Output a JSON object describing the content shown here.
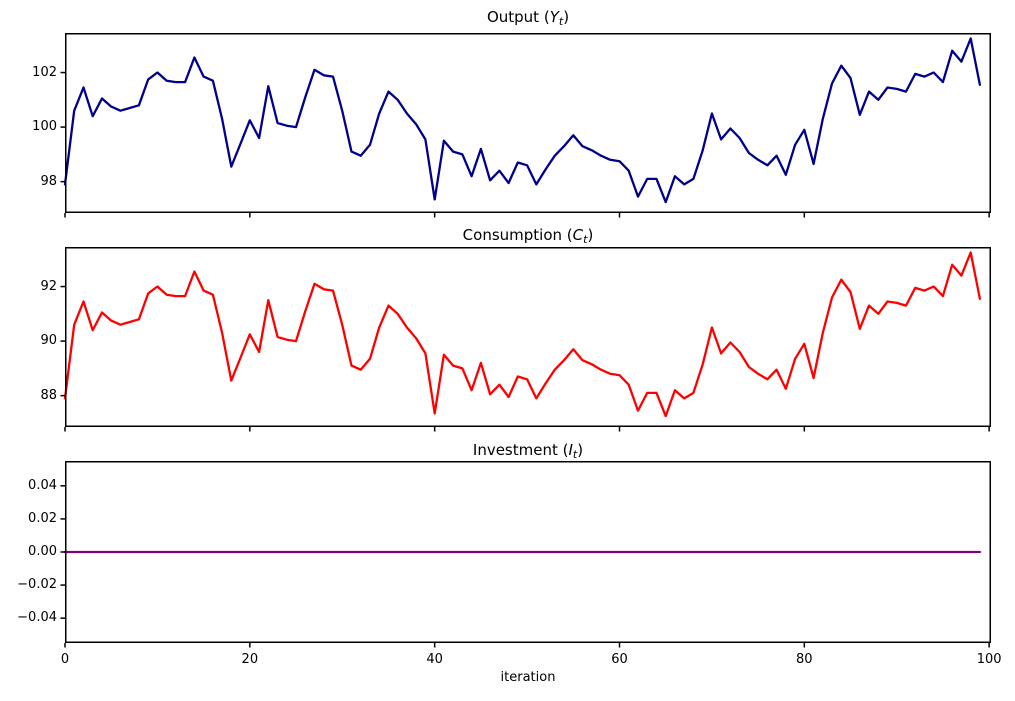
{
  "figure": {
    "xlabel": "iteration",
    "background_color": "#ffffff",
    "axis_color": "#000000",
    "xlim": [
      0,
      100.2
    ],
    "xticks": [
      {
        "v": 0,
        "label": "0"
      },
      {
        "v": 20,
        "label": "20"
      },
      {
        "v": 40,
        "label": "40"
      },
      {
        "v": 60,
        "label": "60"
      },
      {
        "v": 80,
        "label": "80"
      },
      {
        "v": 100,
        "label": "100"
      }
    ]
  },
  "chart_data": [
    {
      "type": "line",
      "title": {
        "prefix": "Output (",
        "symbol": "Y",
        "subscript": "t",
        "suffix": ")"
      },
      "title_text": "Output (Yt)",
      "series_name": "Y_t",
      "color": "#00008B",
      "ylim": [
        96.85,
        103.45
      ],
      "yticks": [
        {
          "v": 98,
          "label": "98"
        },
        {
          "v": 100,
          "label": "100"
        },
        {
          "v": 102,
          "label": "102"
        }
      ],
      "x_start": 0,
      "x_step": 1,
      "values": [
        97.9,
        100.6,
        101.45,
        100.4,
        101.05,
        100.75,
        100.6,
        100.7,
        100.8,
        101.75,
        102.0,
        101.7,
        101.65,
        101.65,
        102.55,
        101.85,
        101.7,
        100.3,
        98.55,
        99.4,
        100.25,
        99.6,
        101.5,
        100.15,
        100.05,
        100.0,
        101.1,
        102.1,
        101.9,
        101.85,
        100.6,
        99.1,
        98.95,
        99.35,
        100.5,
        101.3,
        101.0,
        100.5,
        100.1,
        99.55,
        97.35,
        99.5,
        99.1,
        99.0,
        98.2,
        99.2,
        98.05,
        98.4,
        97.95,
        98.7,
        98.6,
        97.9,
        98.45,
        98.95,
        99.3,
        99.7,
        99.3,
        99.15,
        98.95,
        98.8,
        98.75,
        98.4,
        97.45,
        98.1,
        98.1,
        97.25,
        98.2,
        97.9,
        98.1,
        99.15,
        100.5,
        99.55,
        99.95,
        99.6,
        99.05,
        98.8,
        98.6,
        98.95,
        98.25,
        99.35,
        99.9,
        98.65,
        100.3,
        101.6,
        102.25,
        101.8,
        100.45,
        101.3,
        101.0,
        101.45,
        101.4,
        101.3,
        101.95,
        101.85,
        102.0,
        101.65,
        102.8,
        102.4,
        103.25,
        101.55
      ]
    },
    {
      "type": "line",
      "title": {
        "prefix": "Consumption (",
        "symbol": "C",
        "subscript": "t",
        "suffix": ")"
      },
      "title_text": "Consumption (Ct)",
      "series_name": "C_t",
      "color": "#FF0000",
      "ylim": [
        86.85,
        93.45
      ],
      "yticks": [
        {
          "v": 88,
          "label": "88"
        },
        {
          "v": 90,
          "label": "90"
        },
        {
          "v": 92,
          "label": "92"
        }
      ],
      "x_start": 0,
      "x_step": 1,
      "values": [
        87.9,
        90.6,
        91.45,
        90.4,
        91.05,
        90.75,
        90.6,
        90.7,
        90.8,
        91.75,
        92.0,
        91.7,
        91.65,
        91.65,
        92.55,
        91.85,
        91.7,
        90.3,
        88.55,
        89.4,
        90.25,
        89.6,
        91.5,
        90.15,
        90.05,
        90.0,
        91.1,
        92.1,
        91.9,
        91.85,
        90.6,
        89.1,
        88.95,
        89.35,
        90.5,
        91.3,
        91.0,
        90.5,
        90.1,
        89.55,
        87.35,
        89.5,
        89.1,
        89.0,
        88.2,
        89.2,
        88.05,
        88.4,
        87.95,
        88.7,
        88.6,
        87.9,
        88.45,
        88.95,
        89.3,
        89.7,
        89.3,
        89.15,
        88.95,
        88.8,
        88.75,
        88.4,
        87.45,
        88.1,
        88.1,
        87.25,
        88.2,
        87.9,
        88.1,
        89.15,
        90.5,
        89.55,
        89.95,
        89.6,
        89.05,
        88.8,
        88.6,
        88.95,
        88.25,
        89.35,
        89.9,
        88.65,
        90.3,
        91.6,
        92.25,
        91.8,
        90.45,
        91.3,
        91.0,
        91.45,
        91.4,
        91.3,
        91.95,
        91.85,
        92.0,
        91.65,
        92.8,
        92.4,
        93.25,
        91.55
      ]
    },
    {
      "type": "line",
      "title": {
        "prefix": "Investment (",
        "symbol": "I",
        "subscript": "t",
        "suffix": ")"
      },
      "title_text": "Investment (It)",
      "series_name": "I_t",
      "color": "#800080",
      "ylim": [
        -0.055,
        0.055
      ],
      "yticks": [
        {
          "v": -0.04,
          "label": "−0.04"
        },
        {
          "v": -0.02,
          "label": "−0.02"
        },
        {
          "v": 0.0,
          "label": "0.00"
        },
        {
          "v": 0.02,
          "label": "0.02"
        },
        {
          "v": 0.04,
          "label": "0.04"
        }
      ],
      "x_start": 0,
      "x_step": 1,
      "constant_value": 0.0,
      "n_points": 100
    }
  ]
}
